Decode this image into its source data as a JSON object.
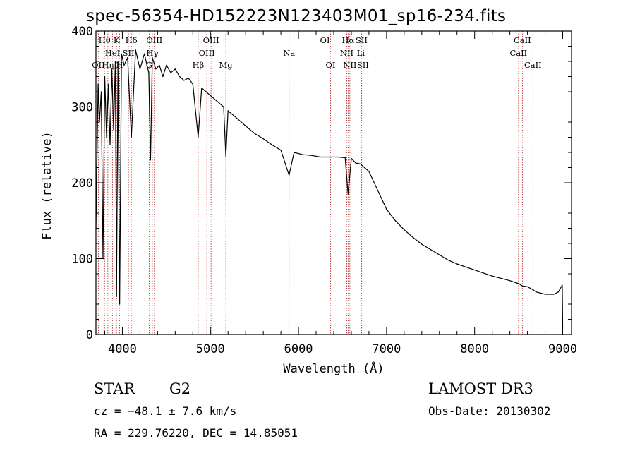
{
  "chart_data": {
    "type": "line",
    "title": "spec-56354-HD152223N123403M01_sp16-234.fits",
    "xlabel": "Wavelength (Å)",
    "ylabel": "Flux (relative)",
    "xlim": [
      3700,
      9100
    ],
    "ylim": [
      0,
      4000
    ],
    "xticks": [
      "4000",
      "5000",
      "6000",
      "7000",
      "8000",
      "9000"
    ],
    "yticks": [
      "0",
      "100",
      "200",
      "300",
      "400"
    ],
    "y_tick_values": [
      0,
      1000,
      2000,
      3000,
      4000
    ],
    "y_display_scale": 0.1,
    "x_minor_step": 200,
    "y_minor_step": 200,
    "grid": false,
    "series": [
      {
        "name": "flux",
        "x": [
          3700,
          3725,
          3740,
          3760,
          3780,
          3800,
          3820,
          3840,
          3860,
          3880,
          3900,
          3920,
          3934,
          3950,
          3969,
          3990,
          4020,
          4060,
          4102,
          4150,
          4200,
          4250,
          4300,
          4320,
          4340,
          4380,
          4420,
          4460,
          4500,
          4550,
          4600,
          4650,
          4700,
          4750,
          4800,
          4861,
          4900,
          4950,
          5000,
          5050,
          5100,
          5150,
          5175,
          5200,
          5300,
          5400,
          5500,
          5600,
          5700,
          5800,
          5893,
          5950,
          6050,
          6150,
          6250,
          6350,
          6450,
          6530,
          6563,
          6600,
          6650,
          6700,
          6750,
          6800,
          6900,
          7000,
          7100,
          7200,
          7300,
          7400,
          7500,
          7600,
          7700,
          7800,
          7900,
          8000,
          8100,
          8200,
          8300,
          8400,
          8500,
          8542,
          8600,
          8662,
          8700,
          8800,
          8900,
          8950,
          8995,
          9000
        ],
        "y": [
          1400,
          3300,
          2800,
          3200,
          1000,
          3400,
          2600,
          3300,
          2500,
          3500,
          2700,
          3600,
          500,
          3600,
          400,
          3700,
          3550,
          3650,
          2600,
          3750,
          3500,
          3700,
          3450,
          2300,
          3650,
          3500,
          3550,
          3400,
          3550,
          3450,
          3500,
          3400,
          3350,
          3380,
          3300,
          2600,
          3250,
          3200,
          3150,
          3100,
          3050,
          3000,
          2350,
          2950,
          2850,
          2750,
          2650,
          2580,
          2500,
          2430,
          2100,
          2400,
          2370,
          2360,
          2340,
          2340,
          2340,
          2330,
          1850,
          2320,
          2260,
          2250,
          2200,
          2150,
          1900,
          1650,
          1500,
          1380,
          1280,
          1190,
          1120,
          1050,
          980,
          930,
          890,
          850,
          810,
          770,
          740,
          710,
          670,
          640,
          630,
          590,
          560,
          530,
          530,
          560,
          650,
          100
        ]
      }
    ],
    "lines": [
      {
        "name": "OII",
        "wavelength": 3727,
        "row": 3
      },
      {
        "name": "Hθ",
        "wavelength": 3798,
        "row": 1
      },
      {
        "name": "HeI",
        "wavelength": 3889,
        "row": 2
      },
      {
        "name": "Hη",
        "wavelength": 3835,
        "row": 3
      },
      {
        "name": "K",
        "wavelength": 3934,
        "row": 1
      },
      {
        "name": "SII",
        "wavelength": 4069,
        "row": 2
      },
      {
        "name": "H",
        "wavelength": 3969,
        "row": 3
      },
      {
        "name": "Hδ",
        "wavelength": 4102,
        "row": 1
      },
      {
        "name": "OIII",
        "wavelength": 4363,
        "row": 1
      },
      {
        "name": "Hγ",
        "wavelength": 4340,
        "row": 2
      },
      {
        "name": "G",
        "wavelength": 4304,
        "row": 3
      },
      {
        "name": "OIII",
        "wavelength": 5007,
        "row": 1
      },
      {
        "name": "OIII",
        "wavelength": 4959,
        "row": 2
      },
      {
        "name": "Hβ",
        "wavelength": 4861,
        "row": 3
      },
      {
        "name": "Mg",
        "wavelength": 5175,
        "row": 3
      },
      {
        "name": "Na",
        "wavelength": 5893,
        "row": 2
      },
      {
        "name": "OI",
        "wavelength": 6300,
        "row": 1
      },
      {
        "name": "OI",
        "wavelength": 6364,
        "row": 3
      },
      {
        "name": "Hα",
        "wavelength": 6563,
        "row": 1
      },
      {
        "name": "NII",
        "wavelength": 6548,
        "row": 2
      },
      {
        "name": "NII",
        "wavelength": 6583,
        "row": 3
      },
      {
        "name": "SII",
        "wavelength": 6716,
        "row": 1
      },
      {
        "name": "Li",
        "wavelength": 6708,
        "row": 2
      },
      {
        "name": "SII",
        "wavelength": 6731,
        "row": 3
      },
      {
        "name": "CaII",
        "wavelength": 8542,
        "row": 1
      },
      {
        "name": "CaII",
        "wavelength": 8498,
        "row": 2
      },
      {
        "name": "CaII",
        "wavelength": 8662,
        "row": 3
      }
    ],
    "colors": {
      "spectrum": "#000000",
      "line_marker": "#b22222",
      "axis": "#000000"
    }
  },
  "info": {
    "obj_class": "STAR",
    "subclass": "G2",
    "cz": "cz = −48.1 ± 7.6 km/s",
    "radec": "RA = 229.76220, DEC =  14.85051",
    "survey": "LAMOST DR3",
    "obs_date": "Obs-Date: 20130302"
  }
}
